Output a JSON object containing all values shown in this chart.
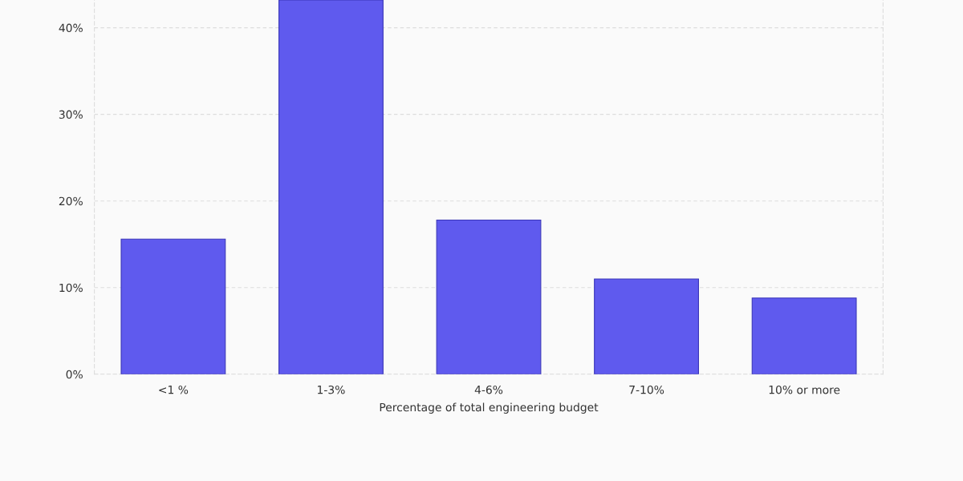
{
  "chart_data": {
    "type": "bar",
    "xlabel": "Percentage of total engineering budget",
    "categories": [
      "<1 %",
      "1-3%",
      "4-6%",
      "7-10%",
      "10% or more"
    ],
    "values": [
      15.6,
      43.2,
      17.8,
      11.0,
      8.8
    ],
    "color": "#5f5aee",
    "ylim": [
      0,
      43.2
    ],
    "yticks": [
      {
        "value": 0,
        "label": "0%"
      },
      {
        "value": 10,
        "label": "10%"
      },
      {
        "value": 20,
        "label": "20%"
      },
      {
        "value": 30,
        "label": "30%"
      },
      {
        "value": 40,
        "label": "40%"
      }
    ],
    "grid": "y"
  }
}
